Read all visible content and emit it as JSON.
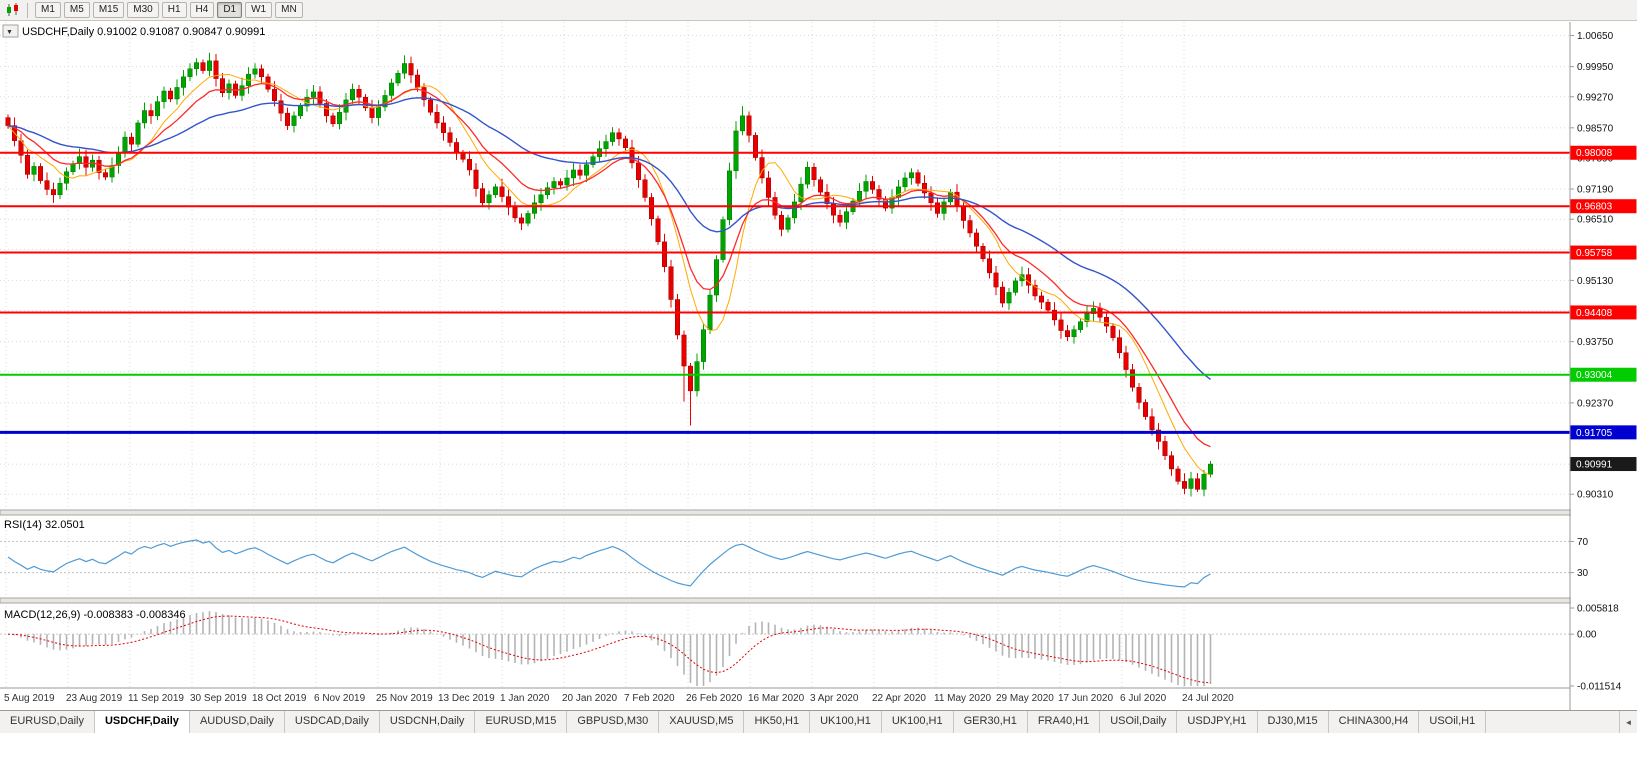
{
  "toolbar": {
    "timeframes": [
      "M1",
      "M5",
      "M15",
      "M30",
      "H1",
      "H4",
      "D1",
      "W1",
      "MN"
    ],
    "active": "D1"
  },
  "icons": {
    "dropdown_arrow": "▼",
    "tab_scroll_left": "◄"
  },
  "colors": {
    "bull": "#00A400",
    "bull_stroke": "#007A00",
    "bear": "#E60000",
    "bear_stroke": "#A30000",
    "grid": "#DADADA",
    "axis_text": "#111111",
    "pane_separator": "#E8E6E2",
    "pane_separator_border": "#A9A6A1",
    "price_flag_bg": "#1A1A1A"
  },
  "header": {
    "symbol": "USDCHF,Daily",
    "open": "0.91002",
    "high": "0.91087",
    "low": "0.90847",
    "close": "0.90991"
  },
  "chart_data": {
    "type": "candlestick",
    "symbol": "USDCHF",
    "timeframe": "Daily",
    "title": "USDCHF,Daily 0.91002 0.91087 0.90847 0.90991",
    "x_labels": [
      "5 Aug 2019",
      "23 Aug 2019",
      "11 Sep 2019",
      "30 Sep 2019",
      "18 Oct 2019",
      "6 Nov 2019",
      "25 Nov 2019",
      "13 Dec 2019",
      "1 Jan 2020",
      "20 Jan 2020",
      "7 Feb 2020",
      "26 Feb 2020",
      "16 Mar 2020",
      "3 Apr 2020",
      "22 Apr 2020",
      "11 May 2020",
      "29 May 2020",
      "17 Jun 2020",
      "6 Jul 2020",
      "24 Jul 2020"
    ],
    "y_axis": {
      "visible_ticks": [
        "1.00650",
        "0.99950",
        "0.99270",
        "0.98570",
        "0.97890",
        "0.97190",
        "0.96510",
        "0.95130",
        "0.93750",
        "0.92370",
        "0.90310"
      ],
      "grid_levels": [
        1.0065,
        0.9995,
        0.9927,
        0.9857,
        0.9789,
        0.9719,
        0.9651,
        0.9583,
        0.9513,
        0.9445,
        0.9375,
        0.9307,
        0.9237,
        0.9169,
        0.9099,
        0.9031
      ],
      "range": [
        0.9,
        1.0082
      ]
    },
    "levels": [
      {
        "value": 0.98008,
        "label": "0.98008",
        "color": "#FF0000",
        "width": 2,
        "kind": "resistance"
      },
      {
        "value": 0.96803,
        "label": "0.96803",
        "color": "#FF0000",
        "width": 2,
        "kind": "resistance"
      },
      {
        "value": 0.95758,
        "label": "0.95758",
        "color": "#FF0000",
        "width": 2,
        "kind": "resistance"
      },
      {
        "value": 0.94408,
        "label": "0.94408",
        "color": "#FF0000",
        "width": 2,
        "kind": "resistance"
      },
      {
        "value": 0.93004,
        "label": "0.93004",
        "color": "#00CC00",
        "width": 2,
        "kind": "support"
      },
      {
        "value": 0.91705,
        "label": "0.91705",
        "color": "#0000D0",
        "width": 3,
        "kind": "support"
      }
    ],
    "current_price": {
      "value": 0.90991,
      "label": "0.90991"
    },
    "candles": {
      "first_open": 0.988,
      "closes": [
        0.9862,
        0.9828,
        0.9795,
        0.9752,
        0.977,
        0.9738,
        0.9718,
        0.9706,
        0.9732,
        0.9758,
        0.9776,
        0.9792,
        0.9768,
        0.9784,
        0.9756,
        0.9746,
        0.9772,
        0.98,
        0.9836,
        0.982,
        0.9868,
        0.9896,
        0.9884,
        0.9916,
        0.994,
        0.9922,
        0.9948,
        0.9972,
        0.999,
        1.0004,
        0.9986,
        1.0008,
        0.9968,
        0.9936,
        0.9956,
        0.993,
        0.9952,
        0.9978,
        0.999,
        0.9972,
        0.9944,
        0.9918,
        0.989,
        0.9862,
        0.9884,
        0.9906,
        0.9926,
        0.9938,
        0.9912,
        0.9884,
        0.9866,
        0.9892,
        0.992,
        0.9944,
        0.9926,
        0.9902,
        0.988,
        0.9904,
        0.993,
        0.9958,
        0.998,
        1.0002,
        0.9976,
        0.9948,
        0.992,
        0.9892,
        0.9868,
        0.9846,
        0.9824,
        0.98,
        0.9786,
        0.9762,
        0.972,
        0.9688,
        0.9706,
        0.9724,
        0.9702,
        0.9678,
        0.9654,
        0.9642,
        0.9664,
        0.9688,
        0.9706,
        0.9722,
        0.9736,
        0.9728,
        0.9744,
        0.9762,
        0.975,
        0.9774,
        0.9792,
        0.981,
        0.9826,
        0.9846,
        0.9832,
        0.9812,
        0.9778,
        0.974,
        0.97,
        0.9652,
        0.96,
        0.9544,
        0.947,
        0.939,
        0.932,
        0.9264,
        0.933,
        0.9402,
        0.948,
        0.956,
        0.965,
        0.976,
        0.985,
        0.9884,
        0.984,
        0.979,
        0.9744,
        0.97,
        0.966,
        0.9628,
        0.9654,
        0.969,
        0.973,
        0.9768,
        0.974,
        0.9712,
        0.9686,
        0.966,
        0.9644,
        0.9668,
        0.9692,
        0.9714,
        0.9736,
        0.9718,
        0.9696,
        0.9676,
        0.97,
        0.9724,
        0.9744,
        0.9756,
        0.9732,
        0.971,
        0.9688,
        0.9664,
        0.969,
        0.9712,
        0.968,
        0.9648,
        0.962,
        0.959,
        0.9562,
        0.953,
        0.9498,
        0.9462,
        0.9486,
        0.9512,
        0.9526,
        0.9502,
        0.9478,
        0.9464,
        0.9446,
        0.9424,
        0.94,
        0.9386,
        0.9402,
        0.942,
        0.9438,
        0.945,
        0.943,
        0.941,
        0.9384,
        0.935,
        0.9312,
        0.9272,
        0.9238,
        0.9206,
        0.9176,
        0.915,
        0.9118,
        0.9088,
        0.906,
        0.9044,
        0.9066,
        0.9042,
        0.9076,
        0.9099
      ],
      "wick_overrides": {
        "104": [
          null,
          0.924
        ],
        "105": [
          null,
          0.9186
        ],
        "112": [
          0.9872,
          null
        ],
        "113": [
          0.9906,
          null
        ],
        "183": [
          null,
          0.9036
        ]
      }
    },
    "moving_averages": [
      {
        "name": "fast",
        "type": "sma",
        "period": 8,
        "color": "#FFAA00",
        "width": 1
      },
      {
        "name": "medium",
        "type": "ema",
        "period": 13,
        "color": "#FF2A2A",
        "width": 1.3
      },
      {
        "name": "slow",
        "type": "ema",
        "period": 34,
        "color": "#3355CC",
        "width": 1.4
      }
    ],
    "indicators": {
      "rsi": {
        "label": "RSI(14)",
        "value": "32.0501",
        "period": 14,
        "levels": [
          "70",
          "30"
        ],
        "level_values": [
          70,
          30
        ],
        "color": "#4F9BD5",
        "range": [
          0,
          100
        ]
      },
      "macd": {
        "label": "MACD(12,26,9)",
        "values": "-0.008383 -0.008346",
        "fast": 12,
        "slow": 26,
        "signal": 9,
        "axis_labels": [
          "0.005818",
          "0.00",
          "-0.011514"
        ],
        "axis_values": [
          0.005818,
          0,
          -0.011514
        ],
        "range": [
          -0.011514,
          0.005818
        ],
        "histogram_color": "#B4B4B4",
        "signal_color": "#E60000"
      }
    }
  },
  "tabs": {
    "active_index": 1,
    "items": [
      "EURUSD,Daily",
      "USDCHF,Daily",
      "AUDUSD,Daily",
      "USDCAD,Daily",
      "USDCNH,Daily",
      "EURUSD,M15",
      "GBPUSD,M30",
      "XAUUSD,M5",
      "HK50,H1",
      "UK100,H1",
      "UK100,H1",
      "GER30,H1",
      "FRA40,H1",
      "USOil,Daily",
      "USDJPY,H1",
      "DJ30,M15",
      "CHINA300,H4",
      "USOil,H1"
    ]
  }
}
